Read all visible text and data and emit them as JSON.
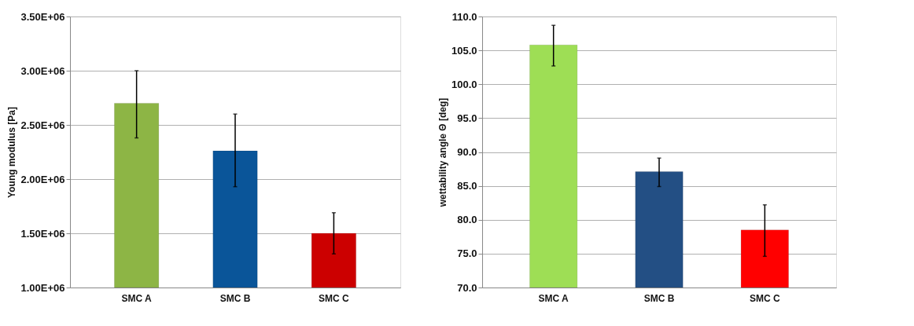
{
  "chart_data": [
    {
      "type": "bar",
      "ylabel": "Young modulus [Pa]",
      "categories": [
        "SMC A",
        "SMC B",
        "SMC C"
      ],
      "values": [
        2700000,
        2260000,
        1500000
      ],
      "colors": [
        "#8db545",
        "#0a5599",
        "#cc0000"
      ],
      "errors": [
        [
          2380000,
          3000000
        ],
        [
          1930000,
          2600000
        ],
        [
          1310000,
          1690000
        ]
      ],
      "ylim": [
        1000000,
        3500000
      ],
      "yticks": [
        {
          "value": 1000000,
          "label": "1.00E+06"
        },
        {
          "value": 1500000,
          "label": "1.50E+06"
        },
        {
          "value": 2000000,
          "label": "2.00E+06"
        },
        {
          "value": 2500000,
          "label": "2.50E+06"
        },
        {
          "value": 3000000,
          "label": "3.00E+06"
        },
        {
          "value": 3500000,
          "label": "3.50E+06"
        }
      ],
      "grid": "y"
    },
    {
      "type": "bar",
      "ylabel": "wettability angle Θ [deg]",
      "categories": [
        "SMC A",
        "SMC B",
        "SMC C"
      ],
      "values": [
        105.8,
        87.1,
        78.5
      ],
      "colors": [
        "#9ede55",
        "#234f84",
        "#ff0000"
      ],
      "errors": [
        [
          102.7,
          108.7
        ],
        [
          84.9,
          89.1
        ],
        [
          74.6,
          82.2
        ]
      ],
      "ylim": [
        70,
        110
      ],
      "yticks": [
        {
          "value": 70,
          "label": "70.0"
        },
        {
          "value": 75,
          "label": "75.0"
        },
        {
          "value": 80,
          "label": "80.0"
        },
        {
          "value": 85,
          "label": "85.0"
        },
        {
          "value": 90,
          "label": "90.0"
        },
        {
          "value": 95,
          "label": "95.0"
        },
        {
          "value": 100,
          "label": "100.0"
        },
        {
          "value": 105,
          "label": "105.0"
        },
        {
          "value": 110,
          "label": "110.0"
        }
      ],
      "grid": "y"
    }
  ]
}
